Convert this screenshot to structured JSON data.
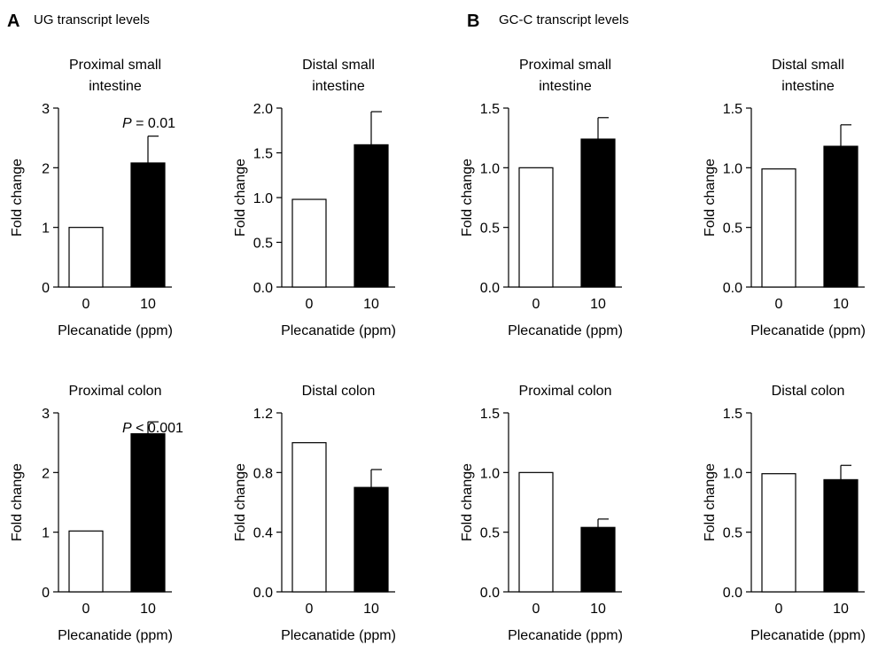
{
  "panels": [
    {
      "letter": "A",
      "title": "UG transcript levels"
    },
    {
      "letter": "B",
      "title": "GC-C transcript levels"
    }
  ],
  "chart_data": [
    {
      "panel": "A",
      "type": "bar",
      "title": [
        "Proximal small",
        "intestine"
      ],
      "xlabel": "Plecanatide (ppm)",
      "ylabel": "Fold change",
      "categories": [
        "0",
        "10"
      ],
      "values": [
        1.0,
        2.08
      ],
      "errors": [
        0,
        0.45
      ],
      "ylim": [
        0,
        3
      ],
      "yticks": [
        "0",
        "1",
        "2",
        "3"
      ],
      "annotation": {
        "prefix": "P",
        "rest": " = 0.01"
      }
    },
    {
      "panel": "A",
      "type": "bar",
      "title": [
        "Distal small",
        "intestine"
      ],
      "xlabel": "Plecanatide (ppm)",
      "ylabel": "Fold change",
      "categories": [
        "0",
        "10"
      ],
      "values": [
        0.98,
        1.59
      ],
      "errors": [
        0,
        0.37
      ],
      "ylim": [
        0,
        2
      ],
      "yticks": [
        "0.0",
        "0.5",
        "1.0",
        "1.5",
        "2.0"
      ]
    },
    {
      "panel": "B",
      "type": "bar",
      "title": [
        "Proximal small",
        "intestine"
      ],
      "xlabel": "Plecanatide (ppm)",
      "ylabel": "Fold change",
      "categories": [
        "0",
        "10"
      ],
      "values": [
        1.0,
        1.24
      ],
      "errors": [
        0,
        0.18
      ],
      "ylim": [
        0,
        1.5
      ],
      "yticks": [
        "0.0",
        "0.5",
        "1.0",
        "1.5"
      ]
    },
    {
      "panel": "B",
      "type": "bar",
      "title": [
        "Distal small",
        "intestine"
      ],
      "xlabel": "Plecanatide (ppm)",
      "ylabel": "Fold change",
      "categories": [
        "0",
        "10"
      ],
      "values": [
        0.99,
        1.18
      ],
      "errors": [
        0,
        0.18
      ],
      "ylim": [
        0,
        1.5
      ],
      "yticks": [
        "0.0",
        "0.5",
        "1.0",
        "1.5"
      ]
    },
    {
      "panel": "A",
      "type": "bar",
      "title": [
        "Proximal colon"
      ],
      "xlabel": "Plecanatide (ppm)",
      "ylabel": "Fold change",
      "categories": [
        "0",
        "10"
      ],
      "values": [
        1.02,
        2.65
      ],
      "errors": [
        0,
        0.2
      ],
      "ylim": [
        0,
        3
      ],
      "yticks": [
        "0",
        "1",
        "2",
        "3"
      ],
      "annotation": {
        "prefix": "P",
        "rest": " < 0.001"
      }
    },
    {
      "panel": "A",
      "type": "bar",
      "title": [
        "Distal colon"
      ],
      "xlabel": "Plecanatide (ppm)",
      "ylabel": "Fold change",
      "categories": [
        "0",
        "10"
      ],
      "values": [
        1.0,
        0.7
      ],
      "errors": [
        0,
        0.12
      ],
      "ylim": [
        0,
        1.2
      ],
      "yticks": [
        "0.0",
        "0.4",
        "0.8",
        "1.2"
      ]
    },
    {
      "panel": "B",
      "type": "bar",
      "title": [
        "Proximal colon"
      ],
      "xlabel": "Plecanatide (ppm)",
      "ylabel": "Fold change",
      "categories": [
        "0",
        "10"
      ],
      "values": [
        1.0,
        0.54
      ],
      "errors": [
        0,
        0.07
      ],
      "ylim": [
        0,
        1.5
      ],
      "yticks": [
        "0.0",
        "0.5",
        "1.0",
        "1.5"
      ]
    },
    {
      "panel": "B",
      "type": "bar",
      "title": [
        "Distal colon"
      ],
      "xlabel": "Plecanatide (ppm)",
      "ylabel": "Fold change",
      "categories": [
        "0",
        "10"
      ],
      "values": [
        0.99,
        0.94
      ],
      "errors": [
        0,
        0.12
      ],
      "ylim": [
        0,
        1.5
      ],
      "yticks": [
        "0.0",
        "0.5",
        "1.0",
        "1.5"
      ]
    }
  ]
}
